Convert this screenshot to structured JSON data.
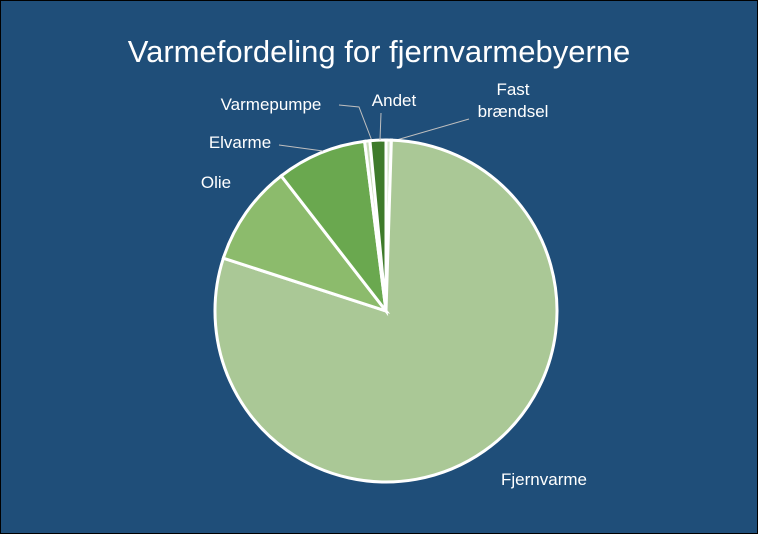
{
  "chart_data": {
    "type": "pie",
    "title": "Varmefordeling for fjernvarmebyerne",
    "categories": [
      "Fast brændsel",
      "Fjernvarme",
      "Olie",
      "Elvarme",
      "Varmepumpe",
      "Andet"
    ],
    "values": [
      0.5,
      79.5,
      9.5,
      8.5,
      0.5,
      1.5
    ],
    "colors": [
      "#d6e6cb",
      "#aac896",
      "#8cbb6c",
      "#6aa84f",
      "#c9ddb9",
      "#3f7b2b"
    ]
  }
}
